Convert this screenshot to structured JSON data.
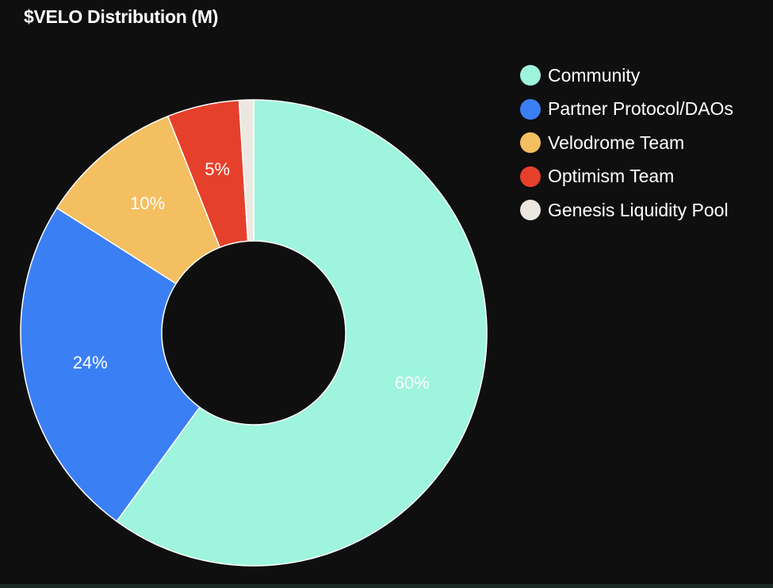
{
  "chart_data": {
    "type": "pie",
    "variant": "donut",
    "title": "$VELO Distribution (M)",
    "categories": [
      "Community",
      "Partner Protocol/DAOs",
      "Velodrome Team",
      "Optimism Team",
      "Genesis Liquidity Pool"
    ],
    "values": [
      60,
      24,
      10,
      5,
      1
    ],
    "labels": [
      "60%",
      "24%",
      "10%",
      "5%",
      ""
    ],
    "colors": [
      "#9ef4dc",
      "#3b7ff5",
      "#f4bf60",
      "#e5402c",
      "#ece8e1"
    ],
    "legend": "right"
  }
}
